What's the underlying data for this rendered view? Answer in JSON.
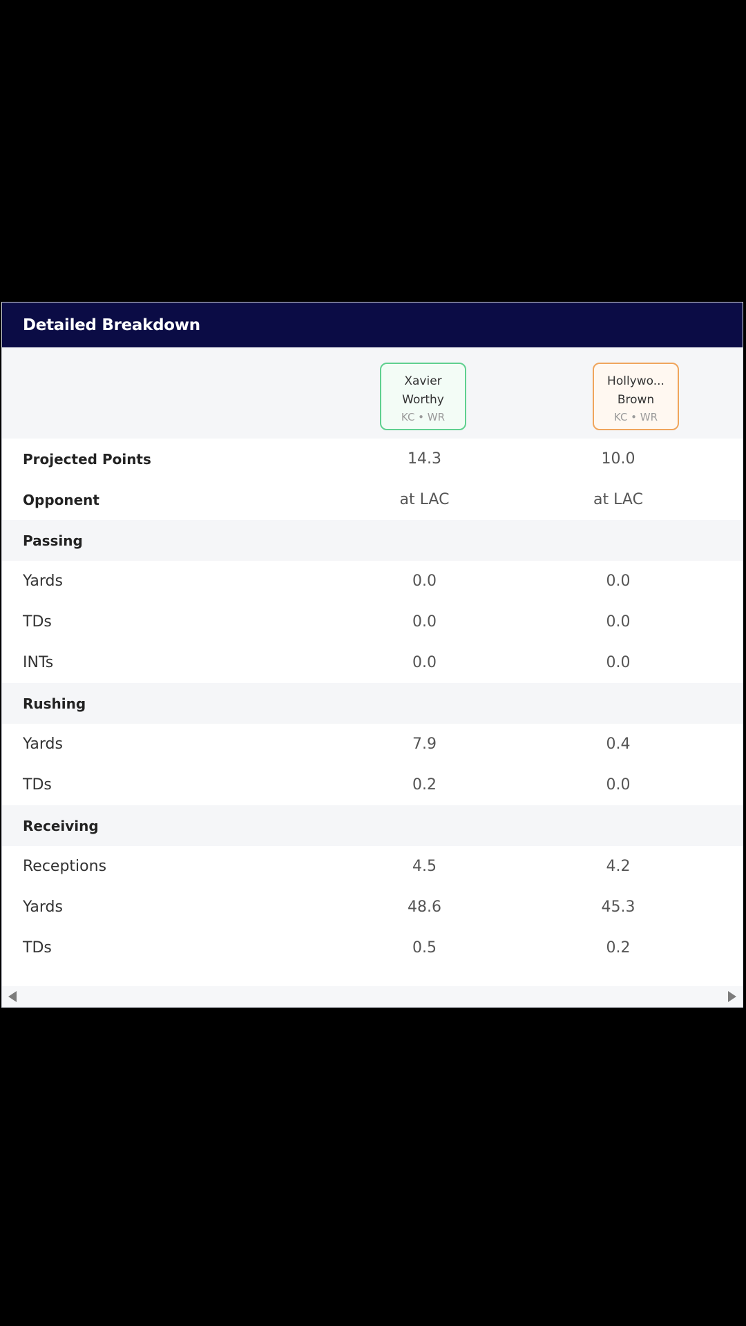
{
  "header": {
    "title": "Detailed Breakdown"
  },
  "players": [
    {
      "name_line1": "Xavier",
      "name_line2": "Worthy",
      "team_pos": "KC • WR"
    },
    {
      "name_line1": "Hollywo...",
      "name_line2": "Brown",
      "team_pos": "KC • WR"
    }
  ],
  "summary": {
    "projected_points": {
      "label": "Projected Points",
      "p1": "14.3",
      "p2": "10.0"
    },
    "opponent": {
      "label": "Opponent",
      "p1": "at LAC",
      "p2": "at LAC"
    }
  },
  "passing": {
    "title": "Passing",
    "yards": {
      "label": "Yards",
      "p1": "0.0",
      "p2": "0.0"
    },
    "tds": {
      "label": "TDs",
      "p1": "0.0",
      "p2": "0.0"
    },
    "ints": {
      "label": "INTs",
      "p1": "0.0",
      "p2": "0.0"
    }
  },
  "rushing": {
    "title": "Rushing",
    "yards": {
      "label": "Yards",
      "p1": "7.9",
      "p2": "0.4"
    },
    "tds": {
      "label": "TDs",
      "p1": "0.2",
      "p2": "0.0"
    }
  },
  "receiving": {
    "title": "Receiving",
    "receptions": {
      "label": "Receptions",
      "p1": "4.5",
      "p2": "4.2"
    },
    "yards": {
      "label": "Yards",
      "p1": "48.6",
      "p2": "45.3"
    },
    "tds": {
      "label": "TDs",
      "p1": "0.5",
      "p2": "0.2"
    }
  },
  "colors": {
    "header_bg": "#0b0c45",
    "p1_border": "#5fd08f",
    "p2_border": "#f0a55c"
  }
}
